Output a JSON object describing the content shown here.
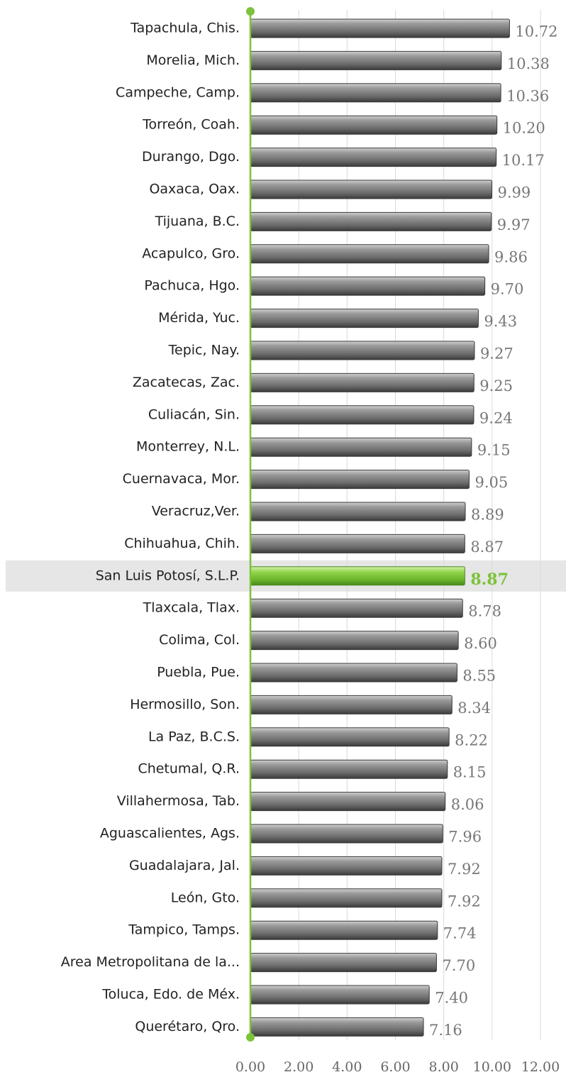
{
  "chart_data": {
    "type": "barh",
    "categories": [
      "Tapachula, Chis.",
      "Morelia, Mich.",
      "Campeche, Camp.",
      "Torreón, Coah.",
      "Durango, Dgo.",
      "Oaxaca, Oax.",
      "Tijuana, B.C.",
      "Acapulco, Gro.",
      "Pachuca, Hgo.",
      "Mérida, Yuc.",
      "Tepic, Nay.",
      "Zacatecas, Zac.",
      "Culiacán, Sin.",
      "Monterrey, N.L.",
      "Cuernavaca, Mor.",
      "Veracruz,Ver.",
      "Chihuahua, Chih.",
      "San Luis Potosí, S.L.P.",
      "Tlaxcala, Tlax.",
      "Colima, Col.",
      "Puebla, Pue.",
      "Hermosillo, Son.",
      "La Paz, B.C.S.",
      "Chetumal, Q.R.",
      "Villahermosa, Tab.",
      "Aguascalientes, Ags.",
      "Guadalajara, Jal.",
      "León, Gto.",
      "Tampico, Tamps.",
      "Area Metropolitana de la...",
      "Toluca, Edo. de Méx.",
      "Querétaro, Qro."
    ],
    "values": [
      10.72,
      10.38,
      10.36,
      10.2,
      10.17,
      9.99,
      9.97,
      9.86,
      9.7,
      9.43,
      9.27,
      9.25,
      9.24,
      9.15,
      9.05,
      8.89,
      8.87,
      8.87,
      8.78,
      8.6,
      8.55,
      8.34,
      8.22,
      8.15,
      8.06,
      7.96,
      7.92,
      7.92,
      7.74,
      7.7,
      7.4,
      7.16
    ],
    "value_labels": [
      "10.72",
      "10.38",
      "10.36",
      "10.20",
      "10.17",
      "9.99",
      "9.97",
      "9.86",
      "9.70",
      "9.43",
      "9.27",
      "9.25",
      "9.24",
      "9.15",
      "9.05",
      "8.89",
      "8.87",
      "8.87",
      "8.78",
      "8.60",
      "8.55",
      "8.34",
      "8.22",
      "8.15",
      "8.06",
      "7.96",
      "7.92",
      "7.92",
      "7.74",
      "7.70",
      "7.40",
      "7.16"
    ],
    "color": "#7a7a7a",
    "highlight_color": "#7cc23a",
    "highlight_index": 17,
    "xlim": [
      0,
      12
    ],
    "xticks": [
      {
        "value": 0,
        "label": "0.00"
      },
      {
        "value": 2,
        "label": "2.00"
      },
      {
        "value": 4,
        "label": "4.00"
      },
      {
        "value": 6,
        "label": "6.00"
      },
      {
        "value": 8,
        "label": "8.00"
      },
      {
        "value": 10,
        "label": "10.00"
      },
      {
        "value": 12,
        "label": "12.00"
      }
    ],
    "grid": true
  }
}
